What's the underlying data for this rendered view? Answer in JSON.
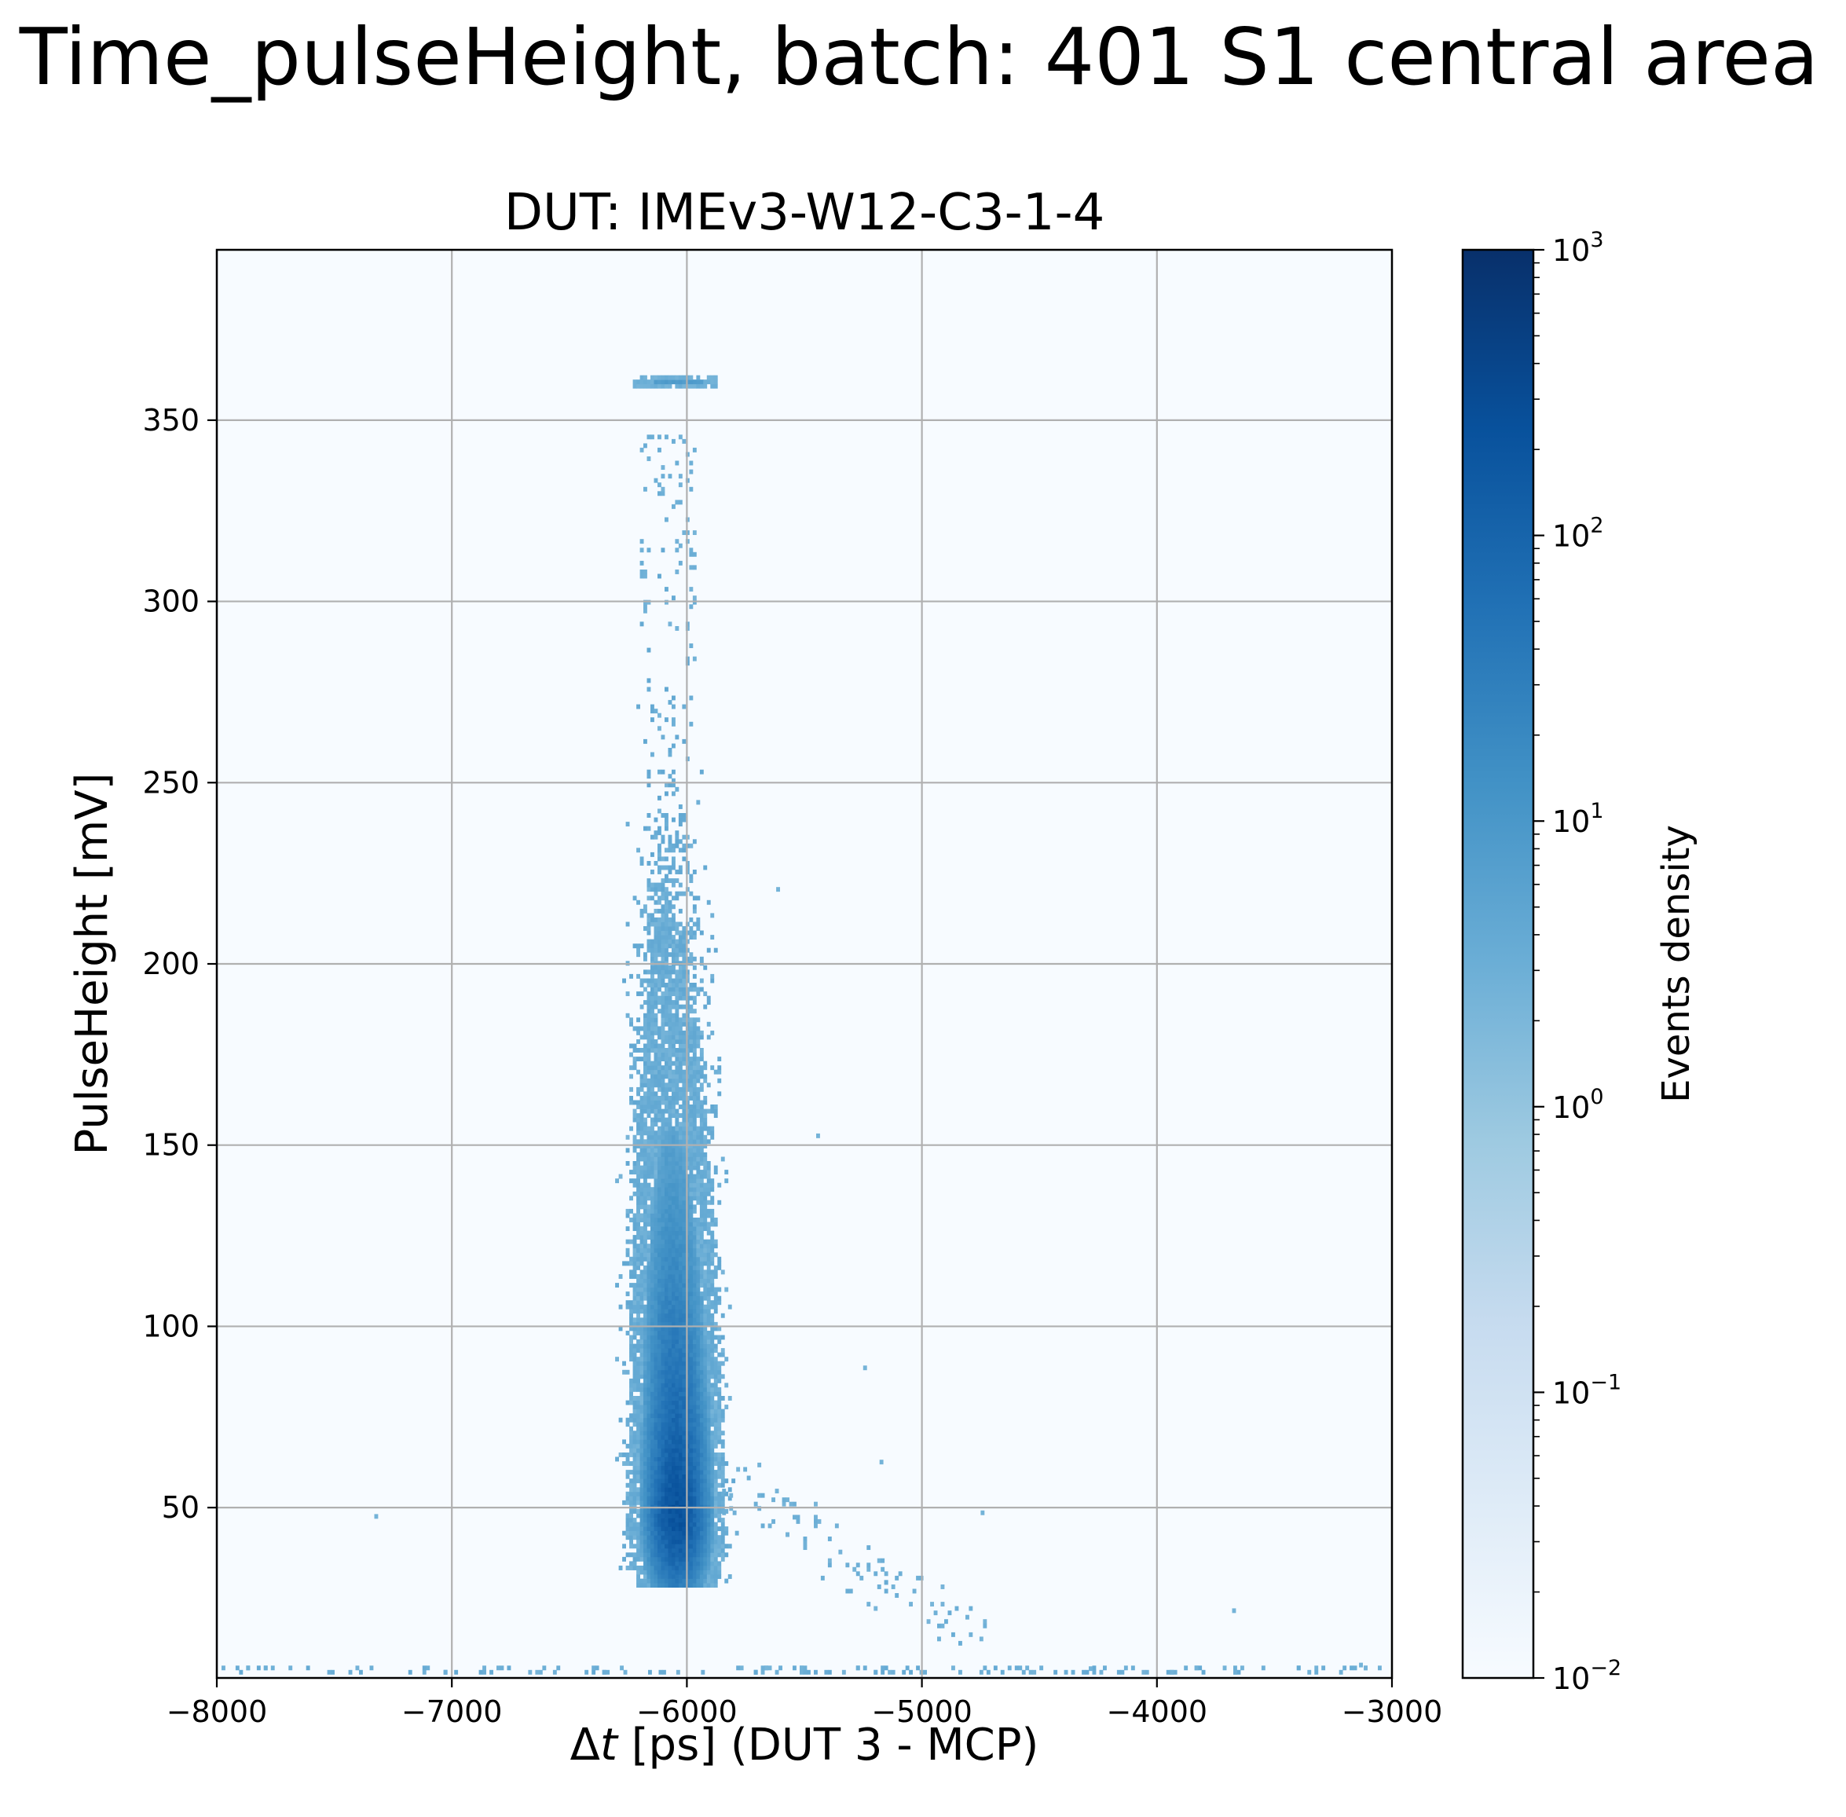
{
  "figure": {
    "suptitle": "Time_pulseHeight, batch: 401 S1 central area"
  },
  "chart_data": {
    "type": "heatmap",
    "title": "DUT: IMEv3-W12-C3-1-4",
    "xlabel_prefix": "Δ",
    "xlabel_var": "t",
    "xlabel_rest": " [ps] (DUT 3 - MCP)",
    "ylabel": "PulseHeight [mV]",
    "xlim": [
      -8000,
      -3000
    ],
    "ylim": [
      3,
      397
    ],
    "x_ticks": [
      -8000,
      -7000,
      -6000,
      -5000,
      -4000,
      -3000
    ],
    "x_tick_labels": [
      "−8000",
      "−7000",
      "−6000",
      "−5000",
      "−4000",
      "−3000"
    ],
    "y_ticks": [
      50,
      100,
      150,
      200,
      250,
      300,
      350
    ],
    "y_tick_labels": [
      "50",
      "100",
      "150",
      "200",
      "250",
      "300",
      "350"
    ],
    "grid": true,
    "colormap": "Blues",
    "colors": {
      "background": "#f7fbff",
      "low": "#c6dbef",
      "mid": "#6baed6",
      "high": "#08519c",
      "max": "#08306b",
      "grid": "#b0b0b0"
    },
    "colorbar": {
      "label": "Events density",
      "scale": "log",
      "range": [
        0.01,
        1000
      ],
      "ticks": [
        {
          "value": 0.01,
          "base": "10",
          "exp": "−2"
        },
        {
          "value": 0.1,
          "base": "10",
          "exp": "−1"
        },
        {
          "value": 1,
          "base": "10",
          "exp": "0"
        },
        {
          "value": 10,
          "base": "10",
          "exp": "1"
        },
        {
          "value": 100,
          "base": "10",
          "exp": "2"
        },
        {
          "value": 1000,
          "base": "10",
          "exp": "3"
        }
      ]
    },
    "distribution": {
      "core_center": [
        -6050,
        50
      ],
      "core_sigma": [
        55,
        12
      ],
      "peak_density": 320,
      "saturation_band": {
        "x_range": [
          -6230,
          -5880
        ],
        "y": 360
      },
      "tail_direction": "up-left toward small Δt at high PulseHeight",
      "secondary_tail": {
        "from": [
          -5800,
          55
        ],
        "to": [
          -4800,
          15
        ]
      },
      "baseline_noise_y": 4
    }
  }
}
